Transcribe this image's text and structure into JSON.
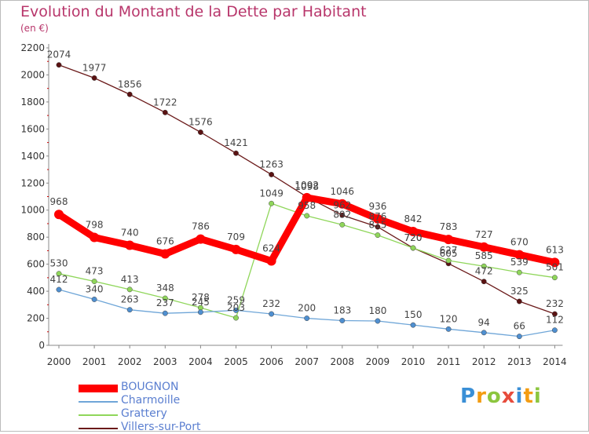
{
  "title": "Evolution du Montant de la Dette par Habitant",
  "subtitle": "(en €)",
  "logo_text": "Proxiti",
  "chart_data": {
    "type": "line",
    "title": "Evolution du Montant de la Dette par Habitant",
    "ylabel": "(en €)",
    "xlabel": "",
    "ylim": [
      0,
      2200
    ],
    "yticks": [
      0,
      200,
      400,
      600,
      800,
      1000,
      1200,
      1400,
      1600,
      1800,
      2000,
      2200
    ],
    "grid": false,
    "legend_position": "bottom-left",
    "categories": [
      "2000",
      "2001",
      "2002",
      "2003",
      "2004",
      "2005",
      "2006",
      "2007",
      "2008",
      "2009",
      "2010",
      "2011",
      "2012",
      "2013",
      "2014"
    ],
    "series": [
      {
        "name": "Villers-sur-Port",
        "color": "#6b1a1a",
        "marker": "#5a1212",
        "values": [
          2074,
          1977,
          1856,
          1722,
          1576,
          1421,
          1263,
          1098,
          962,
          876,
          720,
          605,
          472,
          325,
          232
        ],
        "labels": [
          "2074",
          "1977",
          "1856",
          "1722",
          "1576",
          "1421",
          "1263",
          "1098",
          "962",
          "876",
          "720",
          "605",
          "472",
          "325",
          "232"
        ]
      },
      {
        "name": "Grattery",
        "color": "#8fd65a",
        "marker": "#8fd65a",
        "values": [
          530,
          473,
          413,
          348,
          278,
          203,
          1049,
          958,
          892,
          815,
          720,
          627,
          585,
          539,
          501
        ],
        "labels": [
          "530",
          "473",
          "413",
          "348",
          "278",
          "203",
          "1049",
          "958",
          "892",
          "815",
          "720",
          "627",
          "585",
          "539",
          "501"
        ]
      },
      {
        "name": "Charmoille",
        "color": "#6fa6d8",
        "marker": "#4f8fd0",
        "values": [
          412,
          340,
          263,
          237,
          245,
          259,
          232,
          200,
          183,
          180,
          150,
          120,
          94,
          66,
          112
        ],
        "labels": [
          "412",
          "340",
          "263",
          "237",
          "245",
          "259",
          "232",
          "200",
          "183",
          "180",
          "150",
          "120",
          "94",
          "66",
          "112"
        ]
      },
      {
        "name": "BOUGNON",
        "color": "#ff0000",
        "marker": "#ff0000",
        "values": [
          968,
          798,
          740,
          676,
          786,
          709,
          624,
          1092,
          1046,
          936,
          842,
          783,
          727,
          670,
          613
        ],
        "labels": [
          "968",
          "798",
          "740",
          "676",
          "786",
          "709",
          "624",
          "1092",
          "1046",
          "936",
          "842",
          "783",
          "727",
          "670",
          "613"
        ]
      }
    ]
  },
  "legend": [
    {
      "name": "BOUGNON",
      "color": "#ff0000",
      "text_color": "#5b7fd0"
    },
    {
      "name": "Charmoille",
      "color": "#6fa6d8",
      "text_color": "#5b7fd0"
    },
    {
      "name": "Grattery",
      "color": "#8fd65a",
      "text_color": "#5b7fd0"
    },
    {
      "name": "Villers-sur-Port",
      "color": "#6b1a1a",
      "text_color": "#5b7fd0"
    }
  ]
}
